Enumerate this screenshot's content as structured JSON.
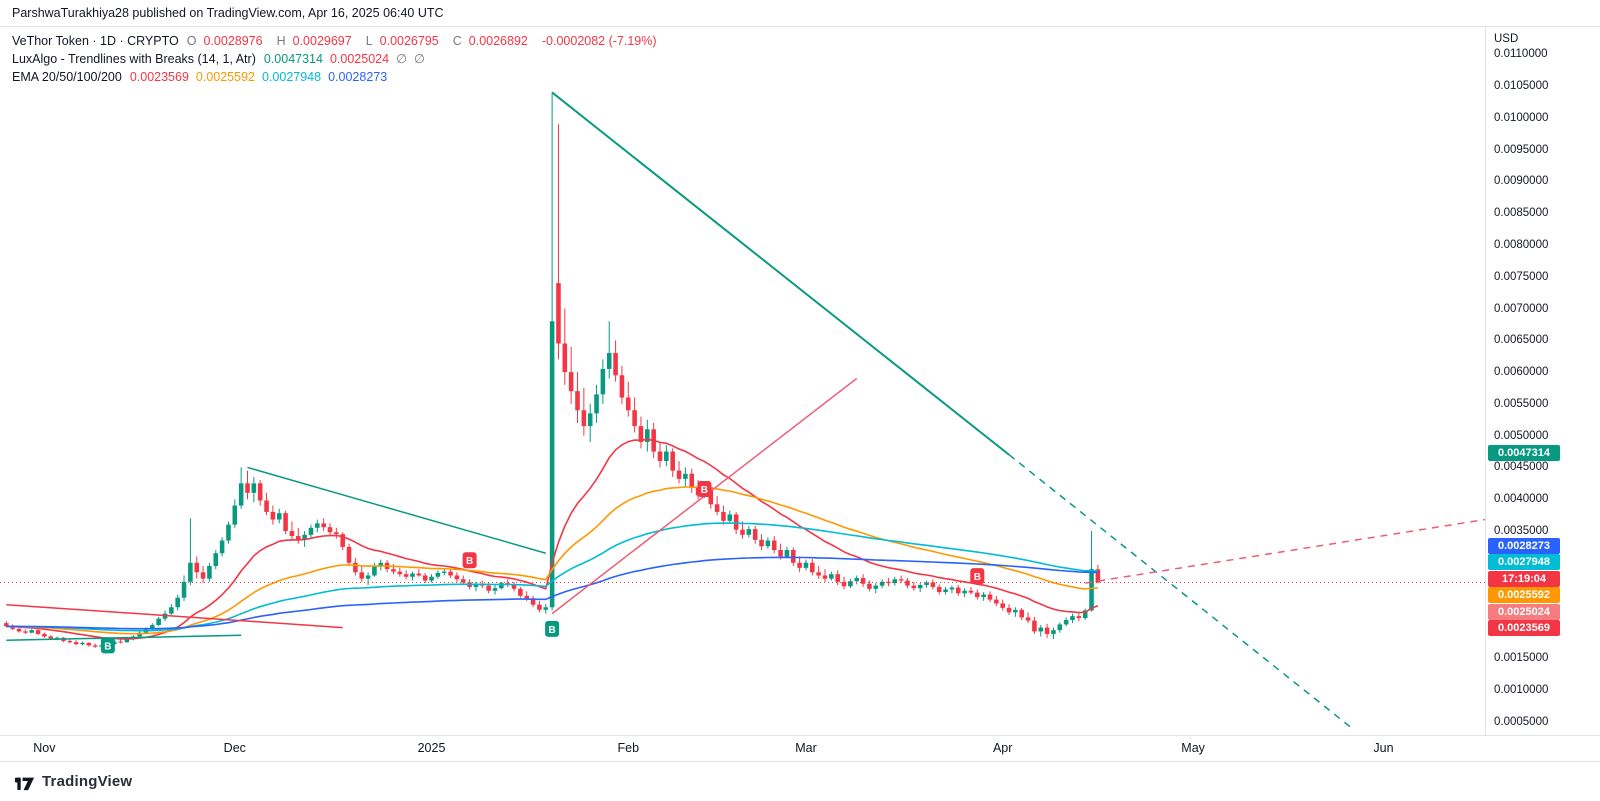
{
  "header": {
    "publisher_line": "ParshwaTurakhiya28 published on TradingView.com, Apr 16, 2025 06:40 UTC"
  },
  "legend": {
    "row1": {
      "title": "VeThor Token · 1D · CRYPTO",
      "ohlc": [
        {
          "k": "O",
          "v": "0.0028976"
        },
        {
          "k": "H",
          "v": "0.0029697"
        },
        {
          "k": "L",
          "v": "0.0026795"
        },
        {
          "k": "C",
          "v": "0.0026892"
        }
      ],
      "change": "-0.0002082 (-7.19%)",
      "value_color": "#f23645"
    },
    "row2": {
      "title": "LuxAlgo - Trendlines with Breaks (14, 1, Atr)",
      "values": [
        {
          "v": "0.0047314",
          "color": "#089981"
        },
        {
          "v": "0.0025024",
          "color": "#f23645"
        },
        {
          "v": "∅",
          "color": "#787b86"
        },
        {
          "v": "∅",
          "color": "#787b86"
        }
      ]
    },
    "row3": {
      "title": "EMA 20/50/100/200",
      "values": [
        {
          "v": "0.0023569",
          "color": "#f23645"
        },
        {
          "v": "0.0025592",
          "color": "#ff9800"
        },
        {
          "v": "0.0027948",
          "color": "#00bcd4"
        },
        {
          "v": "0.0028273",
          "color": "#2962ff"
        }
      ]
    }
  },
  "axis": {
    "currency": "USD",
    "price_ticks": [
      {
        "p": 110,
        "label": "0.0110000"
      },
      {
        "p": 105,
        "label": "0.0105000"
      },
      {
        "p": 100,
        "label": "0.0100000"
      },
      {
        "p": 95,
        "label": "0.0095000"
      },
      {
        "p": 90,
        "label": "0.0090000"
      },
      {
        "p": 85,
        "label": "0.0085000"
      },
      {
        "p": 80,
        "label": "0.0080000"
      },
      {
        "p": 75,
        "label": "0.0075000"
      },
      {
        "p": 70,
        "label": "0.0070000"
      },
      {
        "p": 65,
        "label": "0.0065000"
      },
      {
        "p": 60,
        "label": "0.0060000"
      },
      {
        "p": 55,
        "label": "0.0055000"
      },
      {
        "p": 50,
        "label": "0.0050000"
      },
      {
        "p": 45,
        "label": "0.0045000"
      },
      {
        "p": 40,
        "label": "0.0040000"
      },
      {
        "p": 35,
        "label": "0.0035000"
      },
      {
        "p": 30,
        "label": "0.0030000"
      },
      {
        "p": 25,
        "label": "0.0025000"
      },
      {
        "p": 20,
        "label": "0.0020000"
      },
      {
        "p": 15,
        "label": "0.0015000"
      },
      {
        "p": 10,
        "label": "0.0010000"
      },
      {
        "p": 5,
        "label": "0.0005000"
      }
    ],
    "time_ticks": [
      {
        "label": "Nov",
        "day": 6
      },
      {
        "label": "Dec",
        "day": 36
      },
      {
        "label": "2025",
        "day": 67
      },
      {
        "label": "Feb",
        "day": 98
      },
      {
        "label": "Mar",
        "day": 126
      },
      {
        "label": "Apr",
        "day": 157
      },
      {
        "label": "May",
        "day": 187
      },
      {
        "label": "Jun",
        "day": 217
      }
    ]
  },
  "price_badges": [
    {
      "pips": 47.314,
      "label": "0.0047314",
      "color": "#089981"
    },
    {
      "pips": 28.273,
      "label": "0.0028273",
      "color": "#2962ff"
    },
    {
      "pips": 27.948,
      "label": "0.0027948",
      "color": "#00bcd4"
    },
    {
      "pips": 26.892,
      "label": "17:19:04",
      "color": "#f23645"
    },
    {
      "pips": 25.592,
      "label": "0.0025592",
      "color": "#ff9800"
    },
    {
      "pips": 25.024,
      "label": "0.0025024",
      "color": "#f77c80"
    },
    {
      "pips": 23.569,
      "label": "0.0023569",
      "color": "#f23645"
    }
  ],
  "footer": {
    "brand": "TradingView"
  },
  "chart_data": {
    "type": "candlestick",
    "symbol": "VeThor Token",
    "timeframe": "1D",
    "currency": "USD",
    "price_unit": 0.0001,
    "y_range_pips": [
      2.9,
      114.3
    ],
    "x_range_days": [
      -1,
      233
    ],
    "up_color": "#089981",
    "down_color": "#f23645",
    "current_price": {
      "pips": 26.892,
      "countdown": "17:19:04",
      "color": "#f23645"
    },
    "candles_ohlc_pips": [
      [
        20.5,
        20.8,
        19.8,
        20.0
      ],
      [
        20.0,
        20.3,
        19.4,
        19.6
      ],
      [
        19.6,
        19.9,
        19.0,
        19.2
      ],
      [
        19.2,
        19.5,
        18.8,
        19.0
      ],
      [
        19.0,
        19.6,
        18.9,
        19.4
      ],
      [
        19.4,
        19.5,
        18.6,
        18.8
      ],
      [
        18.8,
        19.0,
        18.2,
        18.4
      ],
      [
        18.4,
        18.6,
        17.9,
        18.1
      ],
      [
        18.1,
        18.4,
        17.8,
        18.2
      ],
      [
        18.2,
        18.3,
        17.5,
        17.7
      ],
      [
        17.7,
        18.0,
        17.3,
        17.5
      ],
      [
        17.5,
        17.8,
        17.0,
        17.2
      ],
      [
        17.2,
        17.6,
        17.0,
        17.4
      ],
      [
        17.4,
        17.5,
        16.8,
        17.0
      ],
      [
        17.0,
        17.3,
        16.6,
        16.8
      ],
      [
        16.8,
        17.2,
        16.5,
        17.0
      ],
      [
        17.0,
        17.4,
        16.8,
        17.2
      ],
      [
        17.2,
        17.8,
        17.1,
        17.6
      ],
      [
        17.6,
        18.0,
        17.3,
        17.5
      ],
      [
        17.5,
        18.2,
        17.4,
        18.0
      ],
      [
        18.0,
        18.6,
        17.8,
        18.4
      ],
      [
        18.4,
        19.2,
        18.2,
        19.0
      ],
      [
        19.0,
        19.8,
        18.8,
        19.5
      ],
      [
        19.5,
        20.5,
        19.3,
        20.2
      ],
      [
        20.2,
        21.5,
        20.0,
        21.2
      ],
      [
        21.2,
        22.5,
        20.8,
        22.0
      ],
      [
        22.0,
        23.5,
        21.8,
        23.0
      ],
      [
        23.0,
        25.0,
        22.5,
        24.5
      ],
      [
        24.5,
        28.0,
        24.0,
        27.0
      ],
      [
        27.0,
        37.0,
        26.5,
        30.0
      ],
      [
        30.0,
        31.0,
        27.5,
        28.5
      ],
      [
        28.5,
        29.5,
        26.8,
        27.5
      ],
      [
        27.5,
        30.0,
        27.0,
        29.5
      ],
      [
        29.5,
        32.0,
        29.0,
        31.5
      ],
      [
        31.5,
        34.0,
        31.0,
        33.5
      ],
      [
        33.5,
        36.5,
        33.0,
        36.0
      ],
      [
        36.0,
        40.0,
        35.5,
        39.0
      ],
      [
        39.0,
        45.0,
        38.5,
        42.5
      ],
      [
        42.5,
        44.5,
        40.0,
        41.0
      ],
      [
        41.0,
        43.5,
        39.5,
        42.5
      ],
      [
        42.5,
        43.0,
        39.0,
        39.8
      ],
      [
        39.8,
        41.0,
        37.5,
        38.0
      ],
      [
        38.0,
        39.0,
        36.0,
        36.8
      ],
      [
        36.8,
        38.5,
        36.2,
        37.8
      ],
      [
        37.8,
        38.2,
        34.5,
        35.0
      ],
      [
        35.0,
        36.5,
        33.5,
        34.2
      ],
      [
        34.2,
        35.5,
        33.0,
        33.6
      ],
      [
        33.6,
        35.0,
        32.5,
        34.4
      ],
      [
        34.4,
        36.0,
        34.0,
        35.5
      ],
      [
        35.5,
        36.8,
        34.8,
        36.2
      ],
      [
        36.2,
        37.0,
        35.0,
        35.6
      ],
      [
        35.6,
        36.2,
        34.2,
        34.8
      ],
      [
        34.8,
        35.5,
        33.8,
        34.5
      ],
      [
        34.5,
        34.8,
        32.0,
        32.5
      ],
      [
        32.5,
        33.0,
        29.5,
        30.0
      ],
      [
        30.0,
        30.8,
        28.0,
        28.5
      ],
      [
        28.5,
        29.5,
        27.0,
        27.5
      ],
      [
        27.5,
        28.5,
        26.5,
        28.0
      ],
      [
        28.0,
        30.0,
        27.8,
        29.5
      ],
      [
        29.5,
        30.5,
        28.8,
        30.0
      ],
      [
        30.0,
        30.4,
        28.5,
        29.0
      ],
      [
        29.0,
        29.8,
        28.2,
        28.6
      ],
      [
        28.6,
        29.2,
        27.8,
        28.2
      ],
      [
        28.2,
        28.8,
        27.4,
        27.8
      ],
      [
        27.8,
        28.6,
        27.2,
        28.3
      ],
      [
        28.3,
        29.0,
        27.8,
        28.0
      ],
      [
        28.0,
        28.4,
        26.8,
        27.2
      ],
      [
        27.2,
        28.2,
        26.9,
        27.8
      ],
      [
        27.8,
        28.8,
        27.5,
        28.4
      ],
      [
        28.4,
        29.2,
        28.0,
        28.6
      ],
      [
        28.6,
        29.0,
        27.6,
        28.0
      ],
      [
        28.0,
        28.5,
        27.0,
        27.4
      ],
      [
        27.4,
        28.0,
        26.5,
        26.9
      ],
      [
        26.9,
        27.4,
        25.8,
        26.2
      ],
      [
        26.2,
        27.0,
        25.5,
        26.6
      ],
      [
        26.6,
        27.2,
        26.0,
        26.4
      ],
      [
        26.4,
        26.8,
        25.2,
        25.6
      ],
      [
        25.6,
        26.5,
        25.0,
        26.0
      ],
      [
        26.0,
        27.0,
        25.8,
        26.8
      ],
      [
        26.8,
        27.4,
        26.2,
        26.6
      ],
      [
        26.6,
        27.0,
        25.5,
        25.9
      ],
      [
        25.9,
        26.2,
        24.5,
        24.8
      ],
      [
        24.8,
        25.5,
        24.0,
        24.4
      ],
      [
        24.4,
        24.8,
        23.0,
        23.4
      ],
      [
        23.4,
        24.0,
        22.2,
        22.6
      ],
      [
        22.6,
        23.5,
        22.0,
        23.0
      ],
      [
        23.0,
        104.0,
        22.5,
        68.0
      ],
      [
        74.0,
        99.0,
        62.0,
        64.5
      ],
      [
        64.5,
        70.0,
        58.0,
        60.0
      ],
      [
        60.0,
        64.0,
        55.0,
        57.0
      ],
      [
        57.0,
        60.0,
        52.0,
        54.0
      ],
      [
        54.0,
        57.5,
        50.0,
        51.5
      ],
      [
        51.5,
        55.0,
        49.0,
        53.5
      ],
      [
        53.5,
        58.0,
        52.0,
        56.5
      ],
      [
        56.5,
        62.0,
        55.0,
        60.5
      ],
      [
        60.5,
        68.0,
        59.0,
        63.0
      ],
      [
        63.0,
        65.0,
        58.5,
        59.5
      ],
      [
        59.5,
        61.0,
        55.0,
        56.0
      ],
      [
        56.0,
        58.5,
        53.0,
        54.0
      ],
      [
        54.0,
        56.0,
        50.5,
        51.5
      ],
      [
        51.5,
        53.0,
        48.0,
        49.0
      ],
      [
        49.0,
        52.5,
        47.5,
        51.0
      ],
      [
        51.0,
        52.0,
        46.5,
        47.5
      ],
      [
        47.5,
        49.0,
        45.0,
        46.0
      ],
      [
        46.0,
        48.5,
        45.2,
        47.5
      ],
      [
        47.5,
        48.0,
        43.5,
        44.5
      ],
      [
        44.5,
        46.0,
        42.5,
        43.2
      ],
      [
        43.2,
        45.0,
        42.0,
        44.0
      ],
      [
        44.0,
        44.8,
        41.0,
        41.8
      ],
      [
        41.8,
        43.0,
        40.0,
        40.6
      ],
      [
        40.6,
        42.5,
        40.2,
        41.9
      ],
      [
        41.9,
        42.3,
        38.5,
        39.2
      ],
      [
        39.2,
        40.5,
        37.5,
        38.0
      ],
      [
        38.0,
        39.0,
        36.0,
        36.6
      ],
      [
        36.6,
        38.2,
        36.2,
        37.6
      ],
      [
        37.6,
        38.0,
        34.5,
        35.2
      ],
      [
        35.2,
        36.5,
        33.8,
        34.4
      ],
      [
        34.4,
        35.8,
        34.0,
        35.3
      ],
      [
        35.3,
        35.8,
        33.0,
        33.6
      ],
      [
        33.6,
        34.5,
        32.0,
        32.6
      ],
      [
        32.6,
        34.0,
        32.2,
        33.5
      ],
      [
        33.5,
        34.2,
        31.5,
        32.0
      ],
      [
        32.0,
        33.0,
        30.5,
        31.0
      ],
      [
        31.0,
        32.5,
        30.8,
        32.0
      ],
      [
        32.0,
        32.4,
        29.5,
        30.0
      ],
      [
        30.0,
        31.0,
        28.5,
        29.2
      ],
      [
        29.2,
        30.5,
        28.8,
        30.0
      ],
      [
        30.0,
        30.6,
        28.0,
        28.5
      ],
      [
        28.5,
        29.5,
        27.5,
        28.0
      ],
      [
        28.0,
        29.0,
        27.0,
        27.5
      ],
      [
        27.5,
        28.6,
        27.2,
        28.2
      ],
      [
        28.2,
        28.8,
        26.5,
        27.0
      ],
      [
        27.0,
        27.8,
        25.8,
        26.3
      ],
      [
        26.3,
        27.5,
        26.0,
        27.1
      ],
      [
        27.1,
        28.0,
        26.6,
        27.6
      ],
      [
        27.6,
        28.2,
        26.2,
        26.7
      ],
      [
        26.7,
        27.2,
        25.5,
        25.9
      ],
      [
        25.9,
        26.8,
        25.2,
        26.4
      ],
      [
        26.4,
        27.4,
        26.0,
        27.0
      ],
      [
        27.0,
        27.6,
        26.3,
        26.8
      ],
      [
        26.8,
        27.8,
        26.4,
        27.4
      ],
      [
        27.4,
        28.0,
        26.8,
        27.2
      ],
      [
        27.2,
        27.6,
        26.0,
        26.4
      ],
      [
        26.4,
        27.0,
        25.6,
        26.0
      ],
      [
        26.0,
        26.8,
        25.4,
        26.5
      ],
      [
        26.5,
        27.2,
        26.1,
        26.9
      ],
      [
        26.9,
        27.4,
        25.8,
        26.2
      ],
      [
        26.2,
        26.6,
        25.0,
        25.4
      ],
      [
        25.4,
        26.2,
        25.0,
        25.8
      ],
      [
        25.8,
        26.4,
        25.2,
        26.1
      ],
      [
        26.1,
        26.5,
        24.8,
        25.2
      ],
      [
        25.2,
        26.0,
        24.6,
        25.6
      ],
      [
        25.6,
        26.2,
        25.0,
        25.3
      ],
      [
        25.3,
        25.8,
        24.2,
        24.6
      ],
      [
        24.6,
        25.4,
        24.0,
        25.0
      ],
      [
        25.0,
        25.5,
        23.8,
        24.2
      ],
      [
        24.2,
        24.8,
        23.2,
        23.6
      ],
      [
        23.6,
        24.2,
        22.5,
        22.9
      ],
      [
        22.9,
        23.5,
        21.8,
        22.2
      ],
      [
        22.2,
        23.0,
        21.5,
        22.6
      ],
      [
        22.6,
        22.9,
        21.0,
        21.4
      ],
      [
        21.4,
        22.2,
        20.5,
        20.9
      ],
      [
        20.9,
        21.5,
        18.8,
        19.2
      ],
      [
        19.2,
        20.2,
        18.4,
        19.8
      ],
      [
        19.8,
        20.4,
        18.2,
        18.8
      ],
      [
        18.8,
        19.8,
        18.0,
        19.4
      ],
      [
        19.4,
        20.6,
        19.0,
        20.3
      ],
      [
        20.3,
        21.4,
        20.0,
        21.0
      ],
      [
        21.0,
        22.0,
        20.5,
        21.6
      ],
      [
        21.6,
        22.2,
        20.8,
        21.3
      ],
      [
        21.3,
        22.8,
        21.0,
        22.5
      ],
      [
        22.5,
        35.0,
        22.3,
        29.0
      ],
      [
        28.976,
        29.697,
        26.795,
        26.892
      ]
    ],
    "emas": [
      {
        "period": 20,
        "color": "#f23645",
        "last_value": "0.0023569"
      },
      {
        "period": 50,
        "color": "#ff9800",
        "last_value": "0.0025592"
      },
      {
        "period": 100,
        "color": "#00bcd4",
        "last_value": "0.0027948"
      },
      {
        "period": 200,
        "color": "#2962ff",
        "last_value": "0.0028273"
      }
    ],
    "trendlines": [
      {
        "points": [
          [
            86,
            104
          ],
          [
            158,
            47
          ]
        ],
        "color": "#089981",
        "dash": "",
        "w": 2
      },
      {
        "points": [
          [
            158,
            47
          ],
          [
            212,
            4
          ]
        ],
        "color": "#089981",
        "dash": "7,6",
        "w": 1.5
      },
      {
        "points": [
          [
            38,
            45
          ],
          [
            85,
            31.5
          ]
        ],
        "color": "#089981",
        "dash": "",
        "w": 1.5
      },
      {
        "points": [
          [
            0,
            17.8
          ],
          [
            37,
            18.6
          ]
        ],
        "color": "#089981",
        "dash": "",
        "w": 1.5
      },
      {
        "points": [
          [
            0,
            23.4
          ],
          [
            53,
            19.8
          ]
        ],
        "color": "#f23645",
        "dash": "",
        "w": 1.5
      },
      {
        "points": [
          [
            86,
            22
          ],
          [
            134,
            59
          ]
        ],
        "color": "#ec5e78",
        "dash": "",
        "w": 1.5
      },
      {
        "points": [
          [
            170,
            26.8
          ],
          [
            233,
            36.8
          ]
        ],
        "color": "#ec5e78",
        "dash": "7,6",
        "w": 1.5
      }
    ],
    "break_markers": [
      {
        "day": 16,
        "pips": 17.0,
        "color": "#089981",
        "label": "B"
      },
      {
        "day": 73,
        "pips": 30.4,
        "color": "#f23645",
        "label": "B"
      },
      {
        "day": 86,
        "pips": 19.6,
        "color": "#089981",
        "label": "B"
      },
      {
        "day": 110,
        "pips": 41.6,
        "color": "#f23645",
        "label": "B"
      },
      {
        "day": 153,
        "pips": 27.9,
        "color": "#f23645",
        "label": "B"
      }
    ]
  }
}
